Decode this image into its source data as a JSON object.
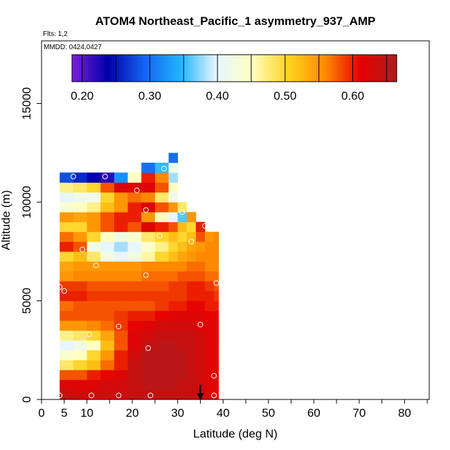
{
  "chart_data": {
    "type": "heatmap",
    "title": "ATOM4 Northeast_Pacific_1 asymmetry_937_AMP",
    "flights_label": "Flts: 1,2",
    "date_label": "MMDD: 0424,0427",
    "xlabel": "Latitude (deg N)",
    "ylabel": "Altitude (m)",
    "xlim": [
      0,
      85
    ],
    "ylim": [
      0,
      17700
    ],
    "x_ticks_labeled": [
      0,
      5,
      10,
      20,
      30,
      40,
      50,
      60,
      70,
      80
    ],
    "x_ticks_minor": [
      15,
      25,
      35,
      45,
      55,
      65,
      75,
      85
    ],
    "y_ticks": [
      0,
      5000,
      10000,
      15000
    ],
    "colorbar": {
      "vmin": 0.185,
      "vmax": 0.665,
      "ticks": [
        {
          "value": 0.2,
          "label": "0.20"
        },
        {
          "value": 0.3,
          "label": "0.30"
        },
        {
          "value": 0.4,
          "label": "0.40"
        },
        {
          "value": 0.5,
          "label": "0.50"
        },
        {
          "value": 0.6,
          "label": "0.60"
        }
      ],
      "boundaries": [
        0.25,
        0.35,
        0.45,
        0.55,
        0.65
      ],
      "stops": [
        "#7a1fd6",
        "#0000a8",
        "#1464f0",
        "#1fb4ff",
        "#e6f6ff",
        "#ffffc0",
        "#ffd21f",
        "#ff8c00",
        "#e60000",
        "#aa1e1e"
      ]
    },
    "grid": {
      "x_step": 1,
      "y_step": 500,
      "notes": "Binned mean asymmetry parameter by latitude and altitude; cells estimated from the image"
    },
    "columns": [
      {
        "x0": 4,
        "x1": 7,
        "ymax": 11500,
        "vals": [
          0.64,
          0.62,
          0.58,
          0.48,
          0.44,
          0.4,
          0.47,
          0.55,
          0.58,
          0.57,
          0.6,
          0.59,
          0.55,
          0.54,
          0.5,
          0.6,
          0.57,
          0.5,
          0.55,
          0.44,
          0.4,
          0.47,
          0.28,
          0.3
        ]
      },
      {
        "x0": 7,
        "x1": 10,
        "ymax": 11500,
        "vals": [
          0.63,
          0.62,
          0.58,
          0.5,
          0.45,
          0.42,
          0.48,
          0.55,
          0.58,
          0.58,
          0.6,
          0.59,
          0.56,
          0.55,
          0.52,
          0.58,
          0.55,
          0.5,
          0.54,
          0.45,
          0.42,
          0.48,
          0.26,
          0.28
        ]
      },
      {
        "x0": 10,
        "x1": 13,
        "ymax": 11500,
        "vals": [
          0.63,
          0.62,
          0.6,
          0.52,
          0.5,
          0.45,
          0.5,
          0.56,
          0.58,
          0.58,
          0.59,
          0.58,
          0.56,
          0.55,
          0.48,
          0.42,
          0.5,
          0.55,
          0.55,
          0.47,
          0.42,
          0.5,
          0.24,
          0.26
        ]
      },
      {
        "x0": 13,
        "x1": 16,
        "ymax": 11500,
        "vals": [
          0.63,
          0.63,
          0.61,
          0.57,
          0.55,
          0.52,
          0.54,
          0.57,
          0.58,
          0.58,
          0.59,
          0.58,
          0.56,
          0.55,
          0.42,
          0.4,
          0.45,
          0.58,
          0.58,
          0.52,
          0.5,
          0.58,
          0.22,
          0.24
        ]
      },
      {
        "x0": 16,
        "x1": 19,
        "ymax": 11500,
        "vals": [
          0.63,
          0.63,
          0.62,
          0.6,
          0.6,
          0.58,
          0.58,
          0.59,
          0.59,
          0.58,
          0.59,
          0.58,
          0.56,
          0.55,
          0.4,
          0.38,
          0.42,
          0.6,
          0.6,
          0.55,
          0.55,
          0.62,
          0.32,
          0.26
        ]
      },
      {
        "x0": 19,
        "x1": 22,
        "ymax": 11500,
        "vals": [
          0.64,
          0.64,
          0.64,
          0.64,
          0.63,
          0.62,
          0.62,
          0.61,
          0.6,
          0.58,
          0.59,
          0.58,
          0.56,
          0.55,
          0.42,
          0.4,
          0.44,
          0.58,
          0.6,
          0.6,
          0.57,
          0.62,
          0.45,
          0.4
        ]
      },
      {
        "x0": 22,
        "x1": 25,
        "ymax": 12000,
        "vals": [
          0.64,
          0.65,
          0.65,
          0.65,
          0.65,
          0.64,
          0.63,
          0.62,
          0.6,
          0.58,
          0.59,
          0.58,
          0.57,
          0.56,
          0.46,
          0.44,
          0.48,
          0.62,
          0.55,
          0.62,
          0.56,
          0.62,
          0.6,
          0.3
        ]
      },
      {
        "x0": 25,
        "x1": 28,
        "ymax": 12000,
        "vals": [
          0.64,
          0.65,
          0.65,
          0.65,
          0.65,
          0.65,
          0.64,
          0.63,
          0.61,
          0.59,
          0.59,
          0.58,
          0.57,
          0.56,
          0.5,
          0.47,
          0.5,
          0.6,
          0.45,
          0.58,
          0.48,
          0.58,
          0.56,
          0.35
        ]
      },
      {
        "x0": 28,
        "x1": 30,
        "ymax": 12500,
        "vals": [
          0.64,
          0.65,
          0.65,
          0.65,
          0.65,
          0.65,
          0.64,
          0.63,
          0.62,
          0.6,
          0.59,
          0.59,
          0.57,
          0.56,
          0.52,
          0.5,
          0.52,
          0.58,
          0.4,
          0.55,
          0.42,
          0.45,
          0.38,
          0.42,
          0.3
        ]
      },
      {
        "x0": 30,
        "x1": 32,
        "ymax": 10000,
        "vals": [
          0.64,
          0.64,
          0.65,
          0.65,
          0.65,
          0.64,
          0.64,
          0.63,
          0.62,
          0.6,
          0.59,
          0.59,
          0.58,
          0.56,
          0.54,
          0.52,
          0.5,
          0.52,
          0.36,
          0.48
        ]
      },
      {
        "x0": 32,
        "x1": 34,
        "ymax": 9500,
        "vals": [
          0.64,
          0.64,
          0.64,
          0.64,
          0.64,
          0.64,
          0.64,
          0.63,
          0.62,
          0.61,
          0.6,
          0.6,
          0.58,
          0.57,
          0.55,
          0.54,
          0.52,
          0.5,
          0.55
        ]
      },
      {
        "x0": 34,
        "x1": 36,
        "ymax": 9000,
        "vals": [
          0.63,
          0.63,
          0.63,
          0.63,
          0.63,
          0.63,
          0.63,
          0.62,
          0.62,
          0.61,
          0.6,
          0.6,
          0.58,
          0.57,
          0.56,
          0.55,
          0.58,
          0.6
        ]
      },
      {
        "x0": 36,
        "x1": 38,
        "ymax": 8500,
        "vals": [
          0.62,
          0.62,
          0.62,
          0.62,
          0.62,
          0.62,
          0.62,
          0.62,
          0.61,
          0.6,
          0.6,
          0.59,
          0.57,
          0.56,
          0.56,
          0.56,
          0.55
        ]
      },
      {
        "x0": 38,
        "x1": 39,
        "ymax": 8500,
        "vals": [
          0.61,
          0.61,
          0.61,
          0.61,
          0.61,
          0.61,
          0.61,
          0.61,
          0.61,
          0.6,
          0.59,
          0.58,
          0.57,
          0.56,
          0.56,
          0.56,
          0.56
        ]
      }
    ],
    "sample_points": [
      [
        4,
        200
      ],
      [
        17,
        200
      ],
      [
        24,
        200
      ],
      [
        38,
        200
      ],
      [
        11,
        200
      ],
      [
        38,
        1200
      ],
      [
        10.5,
        3300
      ],
      [
        17,
        3700
      ],
      [
        23.5,
        2600
      ],
      [
        35,
        3800
      ],
      [
        4,
        5700
      ],
      [
        5,
        5500
      ],
      [
        38.5,
        5900
      ],
      [
        23,
        6300
      ],
      [
        12,
        6800
      ],
      [
        9,
        7600
      ],
      [
        33,
        8000
      ],
      [
        26,
        8300
      ],
      [
        36,
        8800
      ],
      [
        4.5,
        9800
      ],
      [
        23,
        9600
      ],
      [
        31,
        9500
      ],
      [
        21,
        10600
      ],
      [
        7,
        11300
      ],
      [
        14,
        11300
      ],
      [
        27,
        11700
      ]
    ],
    "arrow_marker_lat": 35
  }
}
